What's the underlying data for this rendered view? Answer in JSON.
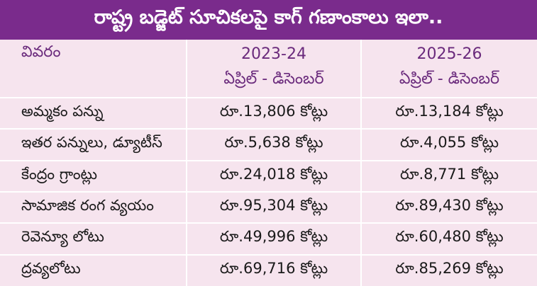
{
  "header": {
    "title": "రాష్ట్ర బడ్జెట్ సూచికలపై కాగ్ గణాంకాలు ఇలా.."
  },
  "table": {
    "columns": [
      "వివరం",
      "2023-24",
      "2025-26"
    ],
    "subheaders": [
      "ఏప్రిల్ - డిసెంబర్",
      "ఏప్రిల్ - డిసెంబర్"
    ],
    "rows": [
      [
        "అమ్మకం పన్ను",
        "రూ.13,806 కోట్లు",
        "రూ.13,184 కోట్లు"
      ],
      [
        "ఇతర పన్నులు, డ్యూటీస్",
        "రూ.5,638 కోట్లు",
        "రూ.4,055 కోట్లు"
      ],
      [
        "కేంద్రం గ్రాంట్లు",
        "రూ.24,018 కోట్లు",
        "రూ.8,771 కోట్లు"
      ],
      [
        "సామాజిక రంగ వ్యయం",
        "రూ.95,304 కోట్లు",
        "రూ.89,430 కోట్లు"
      ],
      [
        "రెవెన్యూ లోటు",
        "రూ.49,996 కోట్లు",
        "రూ.60,480 కోట్లు"
      ],
      [
        "ద్రవ్యలోటు",
        "రూ.69,716 కోట్లు",
        "రూ.85,269 కోట్లు"
      ]
    ]
  }
}
